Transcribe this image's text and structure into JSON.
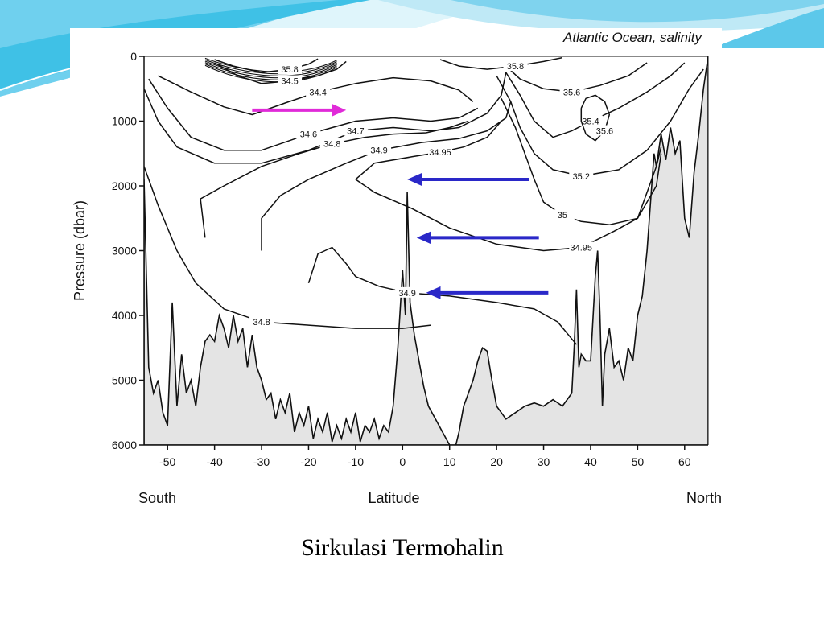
{
  "slide": {
    "caption": "Sirkulasi Termohalin",
    "accent_colors": [
      "#3fc1e6",
      "#9fe3f5",
      "#e8f8fd"
    ]
  },
  "chart_data": {
    "type": "contour",
    "title": "Atlantic Ocean, salinity",
    "xlabel": "Latitude",
    "ylabel": "Pressure (dbar)",
    "x_end_labels": {
      "left": "South",
      "right": "North"
    },
    "xlim": [
      -55,
      65
    ],
    "ylim": [
      6000,
      0
    ],
    "x_ticks": [
      -50,
      -40,
      -30,
      -20,
      -10,
      0,
      10,
      20,
      30,
      40,
      50,
      60
    ],
    "y_ticks": [
      0,
      1000,
      2000,
      3000,
      4000,
      5000,
      6000
    ],
    "grid": false,
    "colors": {
      "line": "#111111",
      "bottom_fill": "#e4e4e4",
      "surface_arrow": "#e02ad8",
      "deep_arrow": "#2a28c8"
    },
    "contours": [
      {
        "label": "34.4",
        "points": [
          [
            -52,
            300
          ],
          [
            -45,
            550
          ],
          [
            -38,
            780
          ],
          [
            -32,
            900
          ],
          [
            -25,
            720
          ],
          [
            -18,
            550
          ],
          [
            -10,
            420
          ],
          [
            -2,
            330
          ],
          [
            6,
            380
          ],
          [
            12,
            520
          ],
          [
            15,
            700
          ]
        ]
      },
      {
        "label": "34.6",
        "points": [
          [
            -54,
            350
          ],
          [
            -50,
            800
          ],
          [
            -45,
            1250
          ],
          [
            -38,
            1450
          ],
          [
            -30,
            1450
          ],
          [
            -20,
            1200
          ],
          [
            -10,
            1000
          ],
          [
            -2,
            950
          ],
          [
            6,
            1000
          ],
          [
            12,
            950
          ],
          [
            16,
            800
          ]
        ]
      },
      {
        "label": "34.7",
        "points": [
          [
            -55,
            500
          ],
          [
            -52,
            1000
          ],
          [
            -48,
            1400
          ],
          [
            -40,
            1650
          ],
          [
            -30,
            1650
          ],
          [
            -20,
            1450
          ],
          [
            -10,
            1150
          ],
          [
            -2,
            1100
          ],
          [
            6,
            1150
          ],
          [
            12,
            1100
          ],
          [
            18,
            880
          ],
          [
            21,
            600
          ],
          [
            22,
            250
          ]
        ]
      },
      {
        "label": "34.8",
        "points": [
          [
            -55,
            1700
          ],
          [
            -52,
            2300
          ],
          [
            -48,
            3000
          ],
          [
            -44,
            3500
          ],
          [
            -38,
            3900
          ],
          [
            -30,
            4100
          ],
          [
            -20,
            4150
          ],
          [
            -10,
            4200
          ],
          [
            0,
            4200
          ],
          [
            6,
            4150
          ]
        ]
      },
      {
        "label": "34.8",
        "points": [
          [
            -42,
            2800
          ],
          [
            -43,
            2200
          ],
          [
            -38,
            2000
          ],
          [
            -30,
            1700
          ],
          [
            -22,
            1500
          ],
          [
            -15,
            1350
          ],
          [
            -8,
            1250
          ],
          [
            -2,
            1200
          ],
          [
            5,
            1180
          ],
          [
            10,
            1100
          ],
          [
            14,
            1000
          ]
        ]
      },
      {
        "label": "34.9",
        "points": [
          [
            -30,
            3000
          ],
          [
            -30,
            2500
          ],
          [
            -26,
            2150
          ],
          [
            -20,
            1900
          ],
          [
            -12,
            1650
          ],
          [
            -5,
            1450
          ],
          [
            4,
            1330
          ],
          [
            12,
            1270
          ],
          [
            18,
            1150
          ],
          [
            22,
            950
          ],
          [
            23,
            700
          ]
        ]
      },
      {
        "label": "34.9",
        "points": [
          [
            -20,
            3500
          ],
          [
            -18,
            3050
          ],
          [
            -15,
            2950
          ],
          [
            -12,
            3200
          ],
          [
            -10,
            3400
          ],
          [
            -5,
            3550
          ],
          [
            1,
            3650
          ],
          [
            10,
            3700
          ],
          [
            20,
            3800
          ],
          [
            28,
            3900
          ],
          [
            33,
            4100
          ],
          [
            37,
            4450
          ]
        ]
      },
      {
        "label": "34.95",
        "points": [
          [
            -10,
            1900
          ],
          [
            -6,
            1650
          ],
          [
            2,
            1550
          ],
          [
            8,
            1480
          ],
          [
            13,
            1400
          ],
          [
            18,
            1250
          ],
          [
            21,
            1000
          ]
        ]
      },
      {
        "label": "34.95",
        "points": [
          [
            -10,
            1900
          ],
          [
            -6,
            2100
          ],
          [
            2,
            2350
          ],
          [
            10,
            2650
          ],
          [
            20,
            2900
          ],
          [
            30,
            3000
          ],
          [
            38,
            2950
          ],
          [
            45,
            2700
          ],
          [
            50,
            2500
          ],
          [
            52,
            2100
          ],
          [
            54,
            1700
          ],
          [
            55,
            1400
          ]
        ]
      },
      {
        "label": "35",
        "points": [
          [
            21,
            650
          ],
          [
            24,
            1100
          ],
          [
            26,
            1500
          ],
          [
            28,
            1900
          ],
          [
            30,
            2250
          ],
          [
            34,
            2450
          ],
          [
            38,
            2550
          ],
          [
            44,
            2600
          ],
          [
            50,
            2500
          ],
          [
            54,
            2000
          ],
          [
            55,
            1500
          ]
        ]
      },
      {
        "label": "35.2",
        "points": [
          [
            20,
            300
          ],
          [
            23,
            700
          ],
          [
            25,
            1100
          ],
          [
            28,
            1500
          ],
          [
            32,
            1750
          ],
          [
            38,
            1850
          ],
          [
            46,
            1750
          ],
          [
            52,
            1450
          ],
          [
            57,
            1000
          ],
          [
            61,
            500
          ],
          [
            64,
            200
          ]
        ]
      },
      {
        "label": "35.4",
        "points": [
          [
            22,
            250
          ],
          [
            25,
            600
          ],
          [
            28,
            1000
          ],
          [
            32,
            1250
          ],
          [
            36,
            1150
          ],
          [
            40,
            1000
          ],
          [
            46,
            800
          ],
          [
            52,
            550
          ],
          [
            57,
            300
          ],
          [
            60,
            100
          ]
        ]
      },
      {
        "label": "35.6",
        "points": [
          [
            22,
            150
          ],
          [
            25,
            350
          ],
          [
            30,
            500
          ],
          [
            36,
            550
          ],
          [
            42,
            450
          ],
          [
            48,
            300
          ],
          [
            52,
            100
          ]
        ]
      },
      {
        "label": "35.6",
        "points": [
          [
            38,
            800
          ],
          [
            39,
            650
          ],
          [
            41,
            600
          ],
          [
            43,
            700
          ],
          [
            44,
            900
          ],
          [
            43,
            1150
          ],
          [
            41,
            1300
          ],
          [
            39,
            1200
          ],
          [
            38,
            1000
          ],
          [
            38,
            800
          ]
        ]
      },
      {
        "label": "34.5",
        "points": [
          [
            -40,
            100
          ],
          [
            -35,
            300
          ],
          [
            -30,
            420
          ],
          [
            -24,
            380
          ],
          [
            -18,
            300
          ],
          [
            -14,
            200
          ],
          [
            -12,
            80
          ]
        ]
      },
      {
        "label": "35.8",
        "points": [
          [
            -40,
            50
          ],
          [
            -36,
            150
          ],
          [
            -30,
            250
          ],
          [
            -24,
            200
          ],
          [
            -20,
            120
          ],
          [
            -18,
            40
          ]
        ]
      },
      {
        "label": "35.8",
        "points": [
          [
            8,
            50
          ],
          [
            12,
            150
          ],
          [
            18,
            200
          ],
          [
            24,
            150
          ],
          [
            30,
            80
          ],
          [
            34,
            20
          ]
        ]
      }
    ],
    "seafloor_depth": [
      [
        -55,
        1900
      ],
      [
        -54,
        4800
      ],
      [
        -53,
        5200
      ],
      [
        -52,
        5000
      ],
      [
        -51,
        5500
      ],
      [
        -50,
        5700
      ],
      [
        -49,
        3800
      ],
      [
        -48,
        5400
      ],
      [
        -47,
        4600
      ],
      [
        -46,
        5200
      ],
      [
        -45,
        5000
      ],
      [
        -44,
        5400
      ],
      [
        -43,
        4800
      ],
      [
        -42,
        4400
      ],
      [
        -41,
        4300
      ],
      [
        -40,
        4400
      ],
      [
        -39,
        4000
      ],
      [
        -38,
        4200
      ],
      [
        -37,
        4500
      ],
      [
        -36,
        4000
      ],
      [
        -35,
        4400
      ],
      [
        -34,
        4200
      ],
      [
        -33,
        4800
      ],
      [
        -32,
        4300
      ],
      [
        -31,
        4800
      ],
      [
        -30,
        5000
      ],
      [
        -29,
        5300
      ],
      [
        -28,
        5200
      ],
      [
        -27,
        5600
      ],
      [
        -26,
        5300
      ],
      [
        -25,
        5500
      ],
      [
        -24,
        5200
      ],
      [
        -23,
        5800
      ],
      [
        -22,
        5500
      ],
      [
        -21,
        5700
      ],
      [
        -20,
        5400
      ],
      [
        -19,
        5900
      ],
      [
        -18,
        5600
      ],
      [
        -17,
        5800
      ],
      [
        -16,
        5500
      ],
      [
        -15,
        5950
      ],
      [
        -14,
        5700
      ],
      [
        -13,
        5900
      ],
      [
        -12,
        5600
      ],
      [
        -11,
        5800
      ],
      [
        -10,
        5500
      ],
      [
        -9,
        5950
      ],
      [
        -8,
        5700
      ],
      [
        -7,
        5800
      ],
      [
        -6,
        5600
      ],
      [
        -5,
        5900
      ],
      [
        -4,
        5700
      ],
      [
        -3,
        5800
      ],
      [
        -2,
        5400
      ],
      [
        -1,
        4500
      ],
      [
        0,
        3300
      ],
      [
        0.6,
        4000
      ],
      [
        1,
        2100
      ],
      [
        1.6,
        3800
      ],
      [
        2.5,
        4300
      ],
      [
        3.5,
        4700
      ],
      [
        4.5,
        5100
      ],
      [
        5.5,
        5400
      ],
      [
        7,
        5600
      ],
      [
        8.5,
        5800
      ],
      [
        10,
        6000
      ],
      [
        11,
        6100
      ],
      [
        12,
        5800
      ],
      [
        13,
        5400
      ],
      [
        14,
        5200
      ],
      [
        15,
        5000
      ],
      [
        16,
        4700
      ],
      [
        17,
        4500
      ],
      [
        18,
        4550
      ],
      [
        19,
        5000
      ],
      [
        20,
        5400
      ],
      [
        21,
        5500
      ],
      [
        22,
        5600
      ],
      [
        24,
        5500
      ],
      [
        26,
        5400
      ],
      [
        28,
        5350
      ],
      [
        30,
        5400
      ],
      [
        32,
        5300
      ],
      [
        34,
        5400
      ],
      [
        35,
        5300
      ],
      [
        36,
        5200
      ],
      [
        36.5,
        4500
      ],
      [
        37,
        3600
      ],
      [
        37.5,
        4800
      ],
      [
        38,
        4600
      ],
      [
        39,
        4700
      ],
      [
        40,
        4700
      ],
      [
        41,
        3400
      ],
      [
        41.5,
        3000
      ],
      [
        42,
        4000
      ],
      [
        42.5,
        5400
      ],
      [
        43,
        4600
      ],
      [
        44,
        4200
      ],
      [
        45,
        4800
      ],
      [
        46,
        4700
      ],
      [
        47,
        5000
      ],
      [
        48,
        4500
      ],
      [
        49,
        4700
      ],
      [
        50,
        4000
      ],
      [
        51,
        3700
      ],
      [
        52,
        3000
      ],
      [
        53,
        2000
      ],
      [
        53.5,
        1500
      ],
      [
        54,
        1700
      ],
      [
        55,
        1200
      ],
      [
        56,
        1600
      ],
      [
        57,
        1100
      ],
      [
        58,
        1500
      ],
      [
        59,
        1300
      ],
      [
        60,
        2500
      ],
      [
        61,
        2800
      ],
      [
        62,
        1800
      ],
      [
        63,
        1200
      ],
      [
        64,
        500
      ],
      [
        65,
        0
      ]
    ],
    "annotations": [
      {
        "kind": "arrow",
        "color_key": "surface_arrow",
        "from": [
          -32,
          830
        ],
        "to": [
          -12,
          830
        ]
      },
      {
        "kind": "arrow",
        "color_key": "deep_arrow",
        "from": [
          27,
          1900
        ],
        "to": [
          1,
          1900
        ]
      },
      {
        "kind": "arrow",
        "color_key": "deep_arrow",
        "from": [
          29,
          2800
        ],
        "to": [
          3,
          2800
        ]
      },
      {
        "kind": "arrow",
        "color_key": "deep_arrow",
        "from": [
          31,
          3650
        ],
        "to": [
          5,
          3650
        ]
      }
    ]
  }
}
